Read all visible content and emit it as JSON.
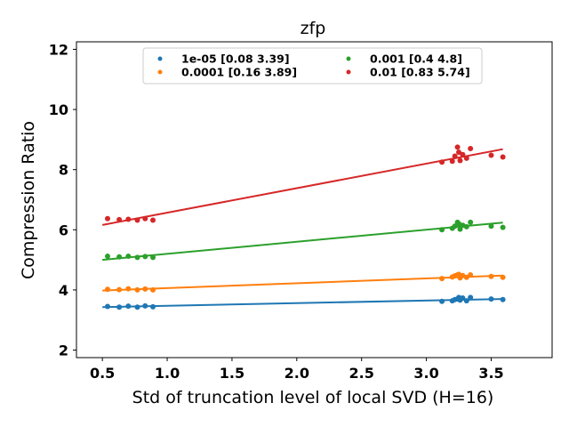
{
  "chart_data": {
    "type": "scatter",
    "title": "zfp",
    "xlabel": "Std of truncation level of local SVD (H=16)",
    "ylabel": "Compression Ratio",
    "xlim": [
      0.3,
      3.97
    ],
    "ylim": [
      1.75,
      12.25
    ],
    "xticks": [
      0.5,
      1.0,
      1.5,
      2.0,
      2.5,
      3.0,
      3.5
    ],
    "xtick_labels": [
      "0.5",
      "1.0",
      "1.5",
      "2.0",
      "2.5",
      "3.0",
      "3.5"
    ],
    "yticks": [
      2,
      4,
      6,
      8,
      10,
      12
    ],
    "ytick_labels": [
      "2",
      "4",
      "6",
      "8",
      "10",
      "12"
    ],
    "grid": false,
    "legend_position": "top-center",
    "legend_columns": 2,
    "series": [
      {
        "name": "1e-05 [0.08 3.39]",
        "color": "#1f77b4",
        "points": [
          [
            0.54,
            3.45
          ],
          [
            0.63,
            3.43
          ],
          [
            0.7,
            3.46
          ],
          [
            0.77,
            3.43
          ],
          [
            0.83,
            3.47
          ],
          [
            0.89,
            3.44
          ],
          [
            3.12,
            3.62
          ],
          [
            3.2,
            3.64
          ],
          [
            3.22,
            3.68
          ],
          [
            3.24,
            3.7
          ],
          [
            3.25,
            3.75
          ],
          [
            3.26,
            3.66
          ],
          [
            3.28,
            3.73
          ],
          [
            3.31,
            3.64
          ],
          [
            3.34,
            3.75
          ],
          [
            3.5,
            3.7
          ],
          [
            3.59,
            3.68
          ]
        ],
        "fit": [
          [
            0.5,
            3.43
          ],
          [
            3.59,
            3.7
          ]
        ]
      },
      {
        "name": "0.0001 [0.16 3.89]",
        "color": "#ff7f0e",
        "points": [
          [
            0.54,
            4.02
          ],
          [
            0.63,
            4.01
          ],
          [
            0.7,
            4.04
          ],
          [
            0.77,
            4.0
          ],
          [
            0.83,
            4.03
          ],
          [
            0.89,
            4.0
          ],
          [
            3.12,
            4.38
          ],
          [
            3.2,
            4.43
          ],
          [
            3.22,
            4.47
          ],
          [
            3.24,
            4.5
          ],
          [
            3.25,
            4.52
          ],
          [
            3.26,
            4.4
          ],
          [
            3.28,
            4.48
          ],
          [
            3.31,
            4.42
          ],
          [
            3.34,
            4.5
          ],
          [
            3.5,
            4.45
          ],
          [
            3.59,
            4.42
          ]
        ],
        "fit": [
          [
            0.5,
            3.98
          ],
          [
            3.59,
            4.48
          ]
        ]
      },
      {
        "name": "0.001 [0.4 4.8]",
        "color": "#2ca02c",
        "points": [
          [
            0.54,
            5.12
          ],
          [
            0.63,
            5.1
          ],
          [
            0.7,
            5.12
          ],
          [
            0.77,
            5.08
          ],
          [
            0.83,
            5.11
          ],
          [
            0.89,
            5.08
          ],
          [
            3.12,
            6.0
          ],
          [
            3.2,
            6.05
          ],
          [
            3.22,
            6.12
          ],
          [
            3.24,
            6.25
          ],
          [
            3.25,
            6.2
          ],
          [
            3.26,
            6.02
          ],
          [
            3.28,
            6.15
          ],
          [
            3.31,
            6.1
          ],
          [
            3.34,
            6.25
          ],
          [
            3.5,
            6.12
          ],
          [
            3.59,
            6.08
          ]
        ],
        "fit": [
          [
            0.5,
            5.0
          ],
          [
            3.59,
            6.24
          ]
        ]
      },
      {
        "name": "0.01 [0.83 5.74]",
        "color": "#d62728",
        "points": [
          [
            0.54,
            6.37
          ],
          [
            0.63,
            6.34
          ],
          [
            0.7,
            6.35
          ],
          [
            0.77,
            6.32
          ],
          [
            0.83,
            6.37
          ],
          [
            0.89,
            6.32
          ],
          [
            3.12,
            8.25
          ],
          [
            3.2,
            8.28
          ],
          [
            3.22,
            8.45
          ],
          [
            3.24,
            8.75
          ],
          [
            3.25,
            8.58
          ],
          [
            3.26,
            8.3
          ],
          [
            3.28,
            8.5
          ],
          [
            3.31,
            8.38
          ],
          [
            3.34,
            8.7
          ],
          [
            3.5,
            8.48
          ],
          [
            3.59,
            8.42
          ]
        ],
        "fit": [
          [
            0.5,
            6.16
          ],
          [
            3.59,
            8.68
          ]
        ]
      }
    ]
  }
}
